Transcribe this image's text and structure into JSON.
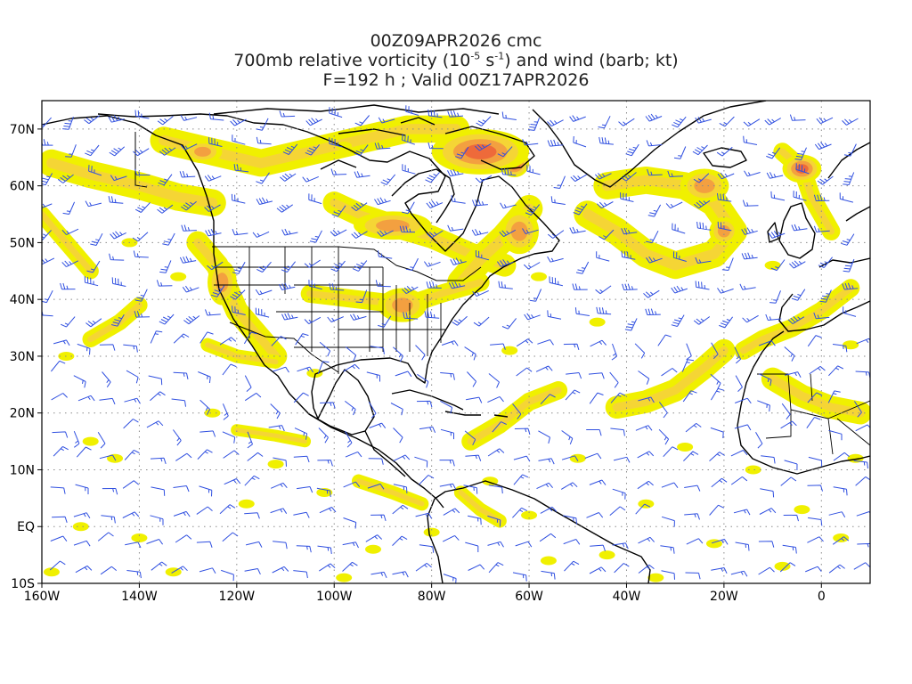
{
  "header": {
    "line1": "00Z09APR2026 cmc",
    "line2_pre": "700mb relative vorticity (10",
    "line2_sup1": "-5",
    "line2_mid": " s",
    "line2_sup2": "-1",
    "line2_post": ") and wind (barb; kt)",
    "line3": "F=192 h ; Valid 00Z17APR2026"
  },
  "map": {
    "lon_range": [
      -160,
      10
    ],
    "lat_range": [
      -10,
      75
    ],
    "lat_labels": [
      {
        "lat": 70,
        "label": "70N"
      },
      {
        "lat": 60,
        "label": "60N"
      },
      {
        "lat": 50,
        "label": "50N"
      },
      {
        "lat": 40,
        "label": "40N"
      },
      {
        "lat": 30,
        "label": "30N"
      },
      {
        "lat": 20,
        "label": "20N"
      },
      {
        "lat": 10,
        "label": "10N"
      },
      {
        "lat": 0,
        "label": "EQ"
      },
      {
        "lat": -10,
        "label": "10S"
      }
    ],
    "lon_labels": [
      {
        "lon": -160,
        "label": "160W"
      },
      {
        "lon": -140,
        "label": "140W"
      },
      {
        "lon": -120,
        "label": "120W"
      },
      {
        "lon": -100,
        "label": "100W"
      },
      {
        "lon": -80,
        "label": "80W"
      },
      {
        "lon": -60,
        "label": "60W"
      },
      {
        "lon": -40,
        "label": "40W"
      },
      {
        "lon": -20,
        "label": "20W"
      },
      {
        "lon": 0,
        "label": "0"
      }
    ],
    "colors": {
      "level1": "#f0f000",
      "level2": "#f5d535",
      "level3": "#f3a040",
      "level4": "#ee6a3a",
      "level5": "#e0304a",
      "barb": "#2f4fe0",
      "coast": "#000000",
      "grid": "#888888"
    },
    "vorticity_blobs": [
      {
        "lon": -63,
        "lat": 64,
        "level": 5,
        "rx": 3,
        "ry": 2.5
      },
      {
        "lon": -70,
        "lat": 66,
        "level": 4,
        "rx": 10,
        "ry": 4
      },
      {
        "lon": -4,
        "lat": 63,
        "level": 4,
        "rx": 4,
        "ry": 2.5
      },
      {
        "lon": -24,
        "lat": 60,
        "level": 3,
        "rx": 5,
        "ry": 3
      },
      {
        "lon": -88,
        "lat": 53,
        "level": 3,
        "rx": 8,
        "ry": 2.5
      },
      {
        "lon": -123,
        "lat": 43,
        "level": 3,
        "rx": 3,
        "ry": 4
      },
      {
        "lon": -86,
        "lat": 39,
        "level": 3,
        "rx": 5,
        "ry": 3
      },
      {
        "lon": -62,
        "lat": 52,
        "level": 3,
        "rx": 4,
        "ry": 4
      },
      {
        "lon": -20,
        "lat": 52,
        "level": 3,
        "rx": 3,
        "ry": 2.5
      },
      {
        "lon": -127,
        "lat": 66,
        "level": 3,
        "rx": 4,
        "ry": 2
      }
    ],
    "vorticity_bands": [
      {
        "points": [
          [
            -158,
            64
          ],
          [
            -150,
            62
          ],
          [
            -140,
            60
          ],
          [
            -132,
            58
          ],
          [
            -125,
            57
          ]
        ],
        "width": 3
      },
      {
        "points": [
          [
            -135,
            68
          ],
          [
            -125,
            66
          ],
          [
            -115,
            64
          ],
          [
            -105,
            66
          ],
          [
            -95,
            68
          ],
          [
            -85,
            70
          ],
          [
            -75,
            70
          ]
        ],
        "width": 3
      },
      {
        "points": [
          [
            -100,
            57
          ],
          [
            -95,
            55
          ],
          [
            -88,
            53
          ],
          [
            -80,
            51
          ],
          [
            -72,
            48
          ],
          [
            -65,
            46
          ]
        ],
        "width": 2.5
      },
      {
        "points": [
          [
            -60,
            56
          ],
          [
            -65,
            51
          ],
          [
            -70,
            47
          ],
          [
            -74,
            43
          ]
        ],
        "width": 3
      },
      {
        "points": [
          [
            -48,
            55
          ],
          [
            -42,
            52
          ],
          [
            -36,
            48
          ],
          [
            -30,
            46
          ],
          [
            -22,
            48
          ],
          [
            -18,
            52
          ],
          [
            -22,
            57
          ],
          [
            -28,
            60
          ],
          [
            -36,
            61
          ],
          [
            -44,
            60
          ]
        ],
        "width": 3
      },
      {
        "points": [
          [
            -8,
            66
          ],
          [
            -4,
            63
          ],
          [
            -2,
            58
          ],
          [
            2,
            52
          ]
        ],
        "width": 2
      },
      {
        "points": [
          [
            -128,
            50
          ],
          [
            -124,
            46
          ],
          [
            -122,
            42
          ],
          [
            -120,
            38
          ],
          [
            -116,
            34
          ],
          [
            -112,
            30
          ]
        ],
        "width": 2.5
      },
      {
        "points": [
          [
            -126,
            32
          ],
          [
            -120,
            30
          ],
          [
            -112,
            29
          ]
        ],
        "width": 1.5
      },
      {
        "points": [
          [
            -105,
            41
          ],
          [
            -95,
            40
          ],
          [
            -85,
            39
          ],
          [
            -78,
            41
          ],
          [
            -70,
            43
          ]
        ],
        "width": 2
      },
      {
        "points": [
          [
            -42,
            21
          ],
          [
            -36,
            22
          ],
          [
            -30,
            24
          ],
          [
            -24,
            28
          ],
          [
            -20,
            31
          ]
        ],
        "width": 2.5
      },
      {
        "points": [
          [
            -72,
            15
          ],
          [
            -66,
            18
          ],
          [
            -60,
            22
          ],
          [
            -54,
            24
          ]
        ],
        "width": 2
      },
      {
        "points": [
          [
            -16,
            31
          ],
          [
            -12,
            33
          ],
          [
            -6,
            35
          ],
          [
            0,
            38
          ],
          [
            6,
            42
          ]
        ],
        "width": 2
      },
      {
        "points": [
          [
            -10,
            26
          ],
          [
            -4,
            23
          ],
          [
            2,
            21
          ],
          [
            8,
            20
          ]
        ],
        "width": 2.5
      },
      {
        "points": [
          [
            -150,
            33
          ],
          [
            -144,
            36
          ],
          [
            -140,
            39
          ]
        ],
        "width": 1.8
      },
      {
        "points": [
          [
            -160,
            55
          ],
          [
            -155,
            50
          ],
          [
            -150,
            45
          ]
        ],
        "width": 1.8
      },
      {
        "points": [
          [
            -95,
            8
          ],
          [
            -88,
            6
          ],
          [
            -82,
            4
          ]
        ],
        "width": 1.5
      },
      {
        "points": [
          [
            -120,
            17
          ],
          [
            -112,
            16
          ],
          [
            -106,
            15
          ]
        ],
        "width": 1.3
      },
      {
        "points": [
          [
            -74,
            6
          ],
          [
            -70,
            3
          ],
          [
            -66,
            1
          ]
        ],
        "width": 1.5
      }
    ],
    "vorticity_specks": [
      [
        -155,
        30
      ],
      [
        -145,
        12
      ],
      [
        -133,
        -8
      ],
      [
        -125,
        20
      ],
      [
        -112,
        11
      ],
      [
        -102,
        6
      ],
      [
        -92,
        -4
      ],
      [
        -80,
        -1
      ],
      [
        -68,
        8
      ],
      [
        -60,
        2
      ],
      [
        -50,
        12
      ],
      [
        -44,
        -5
      ],
      [
        -36,
        4
      ],
      [
        -28,
        14
      ],
      [
        -22,
        -3
      ],
      [
        -14,
        10
      ],
      [
        -8,
        -7
      ],
      [
        -4,
        3
      ],
      [
        4,
        -2
      ],
      [
        7,
        12
      ],
      [
        -140,
        -2
      ],
      [
        -152,
        0
      ],
      [
        -158,
        -8
      ],
      [
        -118,
        4
      ],
      [
        -98,
        -9
      ],
      [
        -56,
        -6
      ],
      [
        -34,
        -9
      ],
      [
        -150,
        15
      ],
      [
        -104,
        27
      ],
      [
        -64,
        31
      ],
      [
        -46,
        36
      ],
      [
        -132,
        44
      ],
      [
        -142,
        50
      ],
      [
        -98,
        67
      ],
      [
        -58,
        44
      ],
      [
        6,
        32
      ],
      [
        -10,
        46
      ]
    ]
  }
}
